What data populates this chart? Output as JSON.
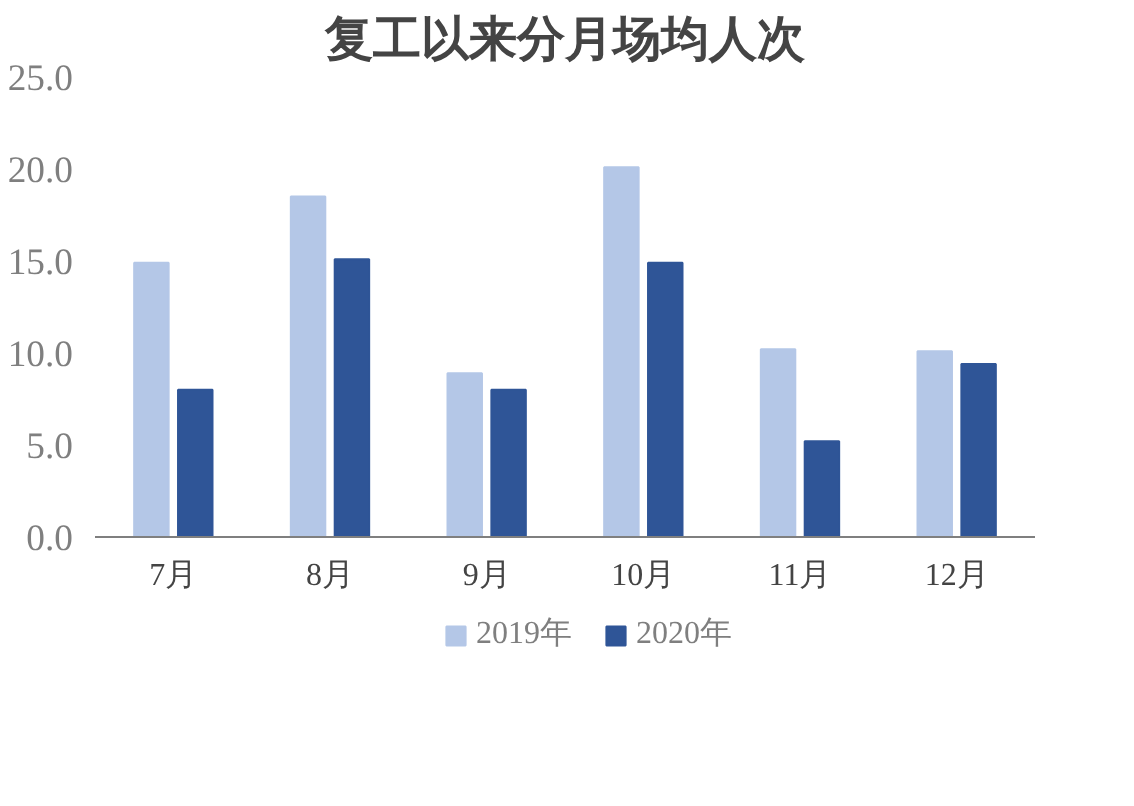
{
  "chart_data": {
    "type": "bar",
    "title": "复工以来分月场均人次",
    "categories": [
      "7月",
      "8月",
      "9月",
      "10月",
      "11月",
      "12月"
    ],
    "series": [
      {
        "name": "2019年",
        "color": "#b4c7e7",
        "values": [
          14.9,
          18.5,
          8.9,
          20.1,
          10.2,
          10.1
        ]
      },
      {
        "name": "2020年",
        "color": "#2f5597",
        "values": [
          8.0,
          15.1,
          8.0,
          14.9,
          5.2,
          9.4
        ]
      }
    ],
    "ylim": [
      0,
      25
    ],
    "yticks": [
      {
        "value": 0,
        "label": "0.0"
      },
      {
        "value": 5,
        "label": "5.0"
      },
      {
        "value": 10,
        "label": "10.0"
      },
      {
        "value": 15,
        "label": "15.0"
      },
      {
        "value": 20,
        "label": "20.0"
      },
      {
        "value": 25,
        "label": "25.0"
      }
    ],
    "grid": false,
    "legend": "bottom"
  }
}
